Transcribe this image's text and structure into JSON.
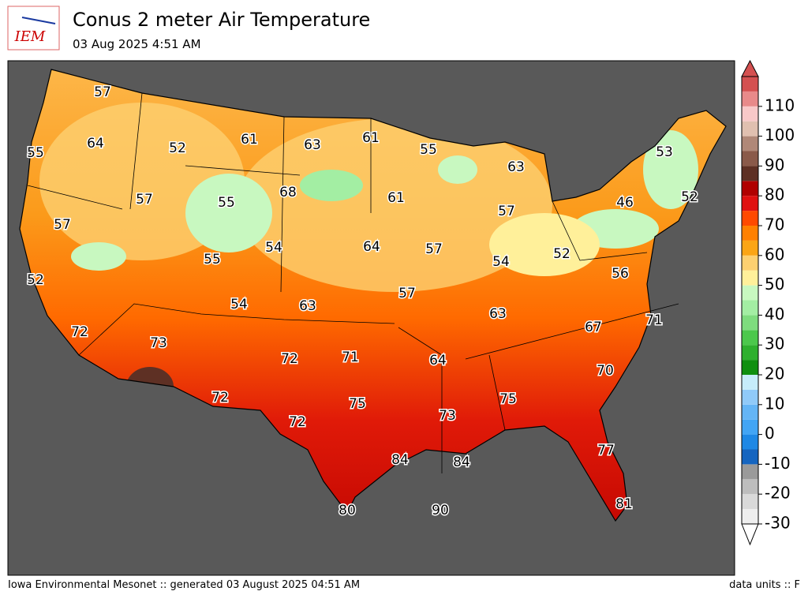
{
  "header": {
    "logo": "IEM",
    "title": "Conus 2 meter Air Temperature",
    "subtitle": "03 Aug 2025 4:51 AM"
  },
  "map": {
    "background": "#595959",
    "labels": [
      57,
      64,
      55,
      52,
      61,
      63,
      61,
      55,
      63,
      53,
      68,
      57,
      55,
      61,
      57,
      46,
      52,
      57,
      54,
      64,
      57,
      54,
      52,
      55,
      56,
      52,
      54,
      63,
      57,
      63,
      67,
      71,
      72,
      73,
      72,
      71,
      64,
      70,
      72,
      75,
      73,
      75,
      72,
      77,
      84,
      84,
      80,
      90,
      81
    ]
  },
  "colorbar": {
    "bounds": [
      -30,
      -25,
      -20,
      -15,
      -10,
      -5,
      0,
      5,
      10,
      15,
      20,
      25,
      30,
      35,
      40,
      45,
      50,
      55,
      60,
      65,
      70,
      75,
      80,
      85,
      90,
      95,
      100,
      105,
      110,
      115,
      120
    ],
    "colors": [
      "#eeeeee",
      "#d9d9d9",
      "#bdbdbd",
      "#9a9a9a",
      "#1565c0",
      "#1e88e5",
      "#42a5f5",
      "#64b5f6",
      "#90caf9",
      "#c6ecfa",
      "#0f8f0f",
      "#2eb02e",
      "#4cc84c",
      "#7edc7e",
      "#a3eea3",
      "#c8f8c0",
      "#fff09a",
      "#fdd070",
      "#fba515",
      "#ff8000",
      "#ff4a00",
      "#e01010",
      "#b00000",
      "#5e3024",
      "#8a5a4a",
      "#b08878",
      "#e0c0b0",
      "#f8c8c8",
      "#e88a8a",
      "#d45050"
    ],
    "ticks": [
      -30,
      -20,
      -10,
      0,
      10,
      20,
      30,
      40,
      50,
      60,
      70,
      80,
      90,
      100,
      110
    ]
  },
  "footer": {
    "left": "Iowa Environmental Mesonet :: generated 03 August 2025 04:51 AM",
    "right": "data units :: F"
  }
}
